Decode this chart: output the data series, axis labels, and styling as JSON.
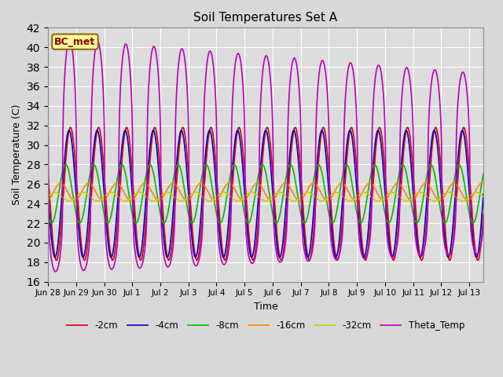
{
  "title": "Soil Temperatures Set A",
  "xlabel": "Time",
  "ylabel": "Soil Temperature (C)",
  "ylim": [
    16,
    42
  ],
  "annotation_text": "BC_met",
  "annotation_color": "#8B0000",
  "annotation_bg": "#FFFF99",
  "annotation_border": "#8B6914",
  "fig_bg": "#D8D8D8",
  "plot_bg": "#DCDCDC",
  "series": [
    {
      "label": "-2cm",
      "color": "#DD0000",
      "lw": 1.2
    },
    {
      "label": "-4cm",
      "color": "#0000CC",
      "lw": 1.2
    },
    {
      "label": "-8cm",
      "color": "#00BB00",
      "lw": 1.2
    },
    {
      "label": "-16cm",
      "color": "#FF8800",
      "lw": 1.2
    },
    {
      "label": "-32cm",
      "color": "#CCCC00",
      "lw": 1.2
    },
    {
      "label": "Theta_Temp",
      "color": "#BB00BB",
      "lw": 1.2
    }
  ],
  "xtick_labels": [
    "Jun 28",
    "Jun 29",
    "Jun 30",
    "Jul 1",
    "Jul 2",
    "Jul 3",
    "Jul 4",
    "Jul 5",
    "Jul 6",
    "Jul 7",
    "Jul 8",
    "Jul 9",
    "Jul 10",
    "Jul 11",
    "Jul 12",
    "Jul 13"
  ],
  "grid_color": "#FFFFFF",
  "n_days": 15.5,
  "pts_per_day": 144
}
